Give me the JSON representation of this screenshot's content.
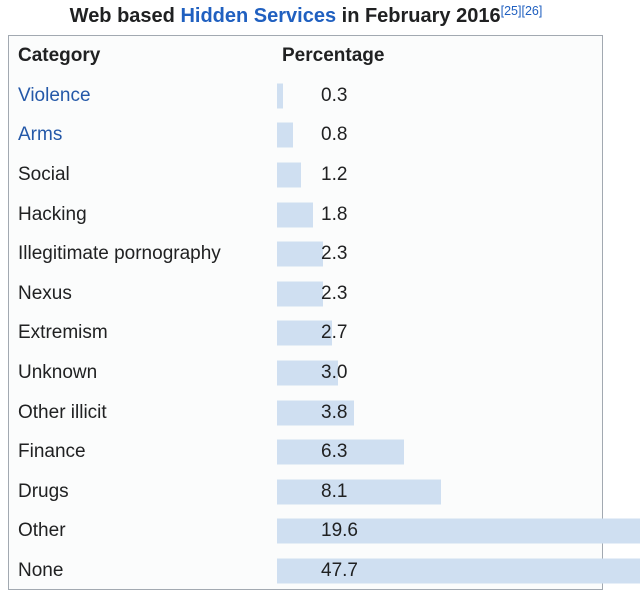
{
  "page": {
    "title_prefix": "Web based ",
    "title_link": "Hidden Services",
    "title_suffix": " in February 2016",
    "citations": [
      "[25]",
      "[26]"
    ]
  },
  "table": {
    "header_category": "Category",
    "header_percentage": "Percentage",
    "rows": [
      {
        "label": "Violence",
        "value": "0.3",
        "link": true
      },
      {
        "label": "Arms",
        "value": "0.8",
        "link": true
      },
      {
        "label": "Social",
        "value": "1.2",
        "link": false
      },
      {
        "label": "Hacking",
        "value": "1.8",
        "link": false
      },
      {
        "label": "Illegitimate pornography",
        "value": "2.3",
        "link": false
      },
      {
        "label": "Nexus",
        "value": "2.3",
        "link": false
      },
      {
        "label": "Extremism",
        "value": "2.7",
        "link": false
      },
      {
        "label": "Unknown",
        "value": "3.0",
        "link": false
      },
      {
        "label": "Other illicit",
        "value": "3.8",
        "link": false
      },
      {
        "label": "Finance",
        "value": "6.3",
        "link": false
      },
      {
        "label": "Drugs",
        "value": "8.1",
        "link": false
      },
      {
        "label": "Other",
        "value": "19.6",
        "link": false
      },
      {
        "label": "None",
        "value": "47.7",
        "link": false
      }
    ]
  },
  "colors": {
    "text": "#202122",
    "link_blue": "#2060c0",
    "category_link_blue": "#2458a8",
    "bar_fill": "#cfdff1",
    "table_border": "#a2a9b1"
  },
  "chart_data": {
    "type": "bar",
    "orientation": "horizontal",
    "title": "Web based Hidden Services in February 2016",
    "columns": [
      "Category",
      "Percentage"
    ],
    "categories": [
      "Violence",
      "Arms",
      "Social",
      "Hacking",
      "Illegitimate pornography",
      "Nexus",
      "Extremism",
      "Unknown",
      "Other illicit",
      "Finance",
      "Drugs",
      "Other",
      "None"
    ],
    "values": [
      0.3,
      0.8,
      1.2,
      1.8,
      2.3,
      2.3,
      2.7,
      3.0,
      3.8,
      6.3,
      8.1,
      19.6,
      47.7
    ],
    "unit": "percent",
    "value_labels_shown": true,
    "bars_overflow_table": [
      "Other",
      "None"
    ],
    "linked_categories": [
      "Violence",
      "Arms"
    ],
    "citations": [
      "[25]",
      "[26]"
    ]
  }
}
